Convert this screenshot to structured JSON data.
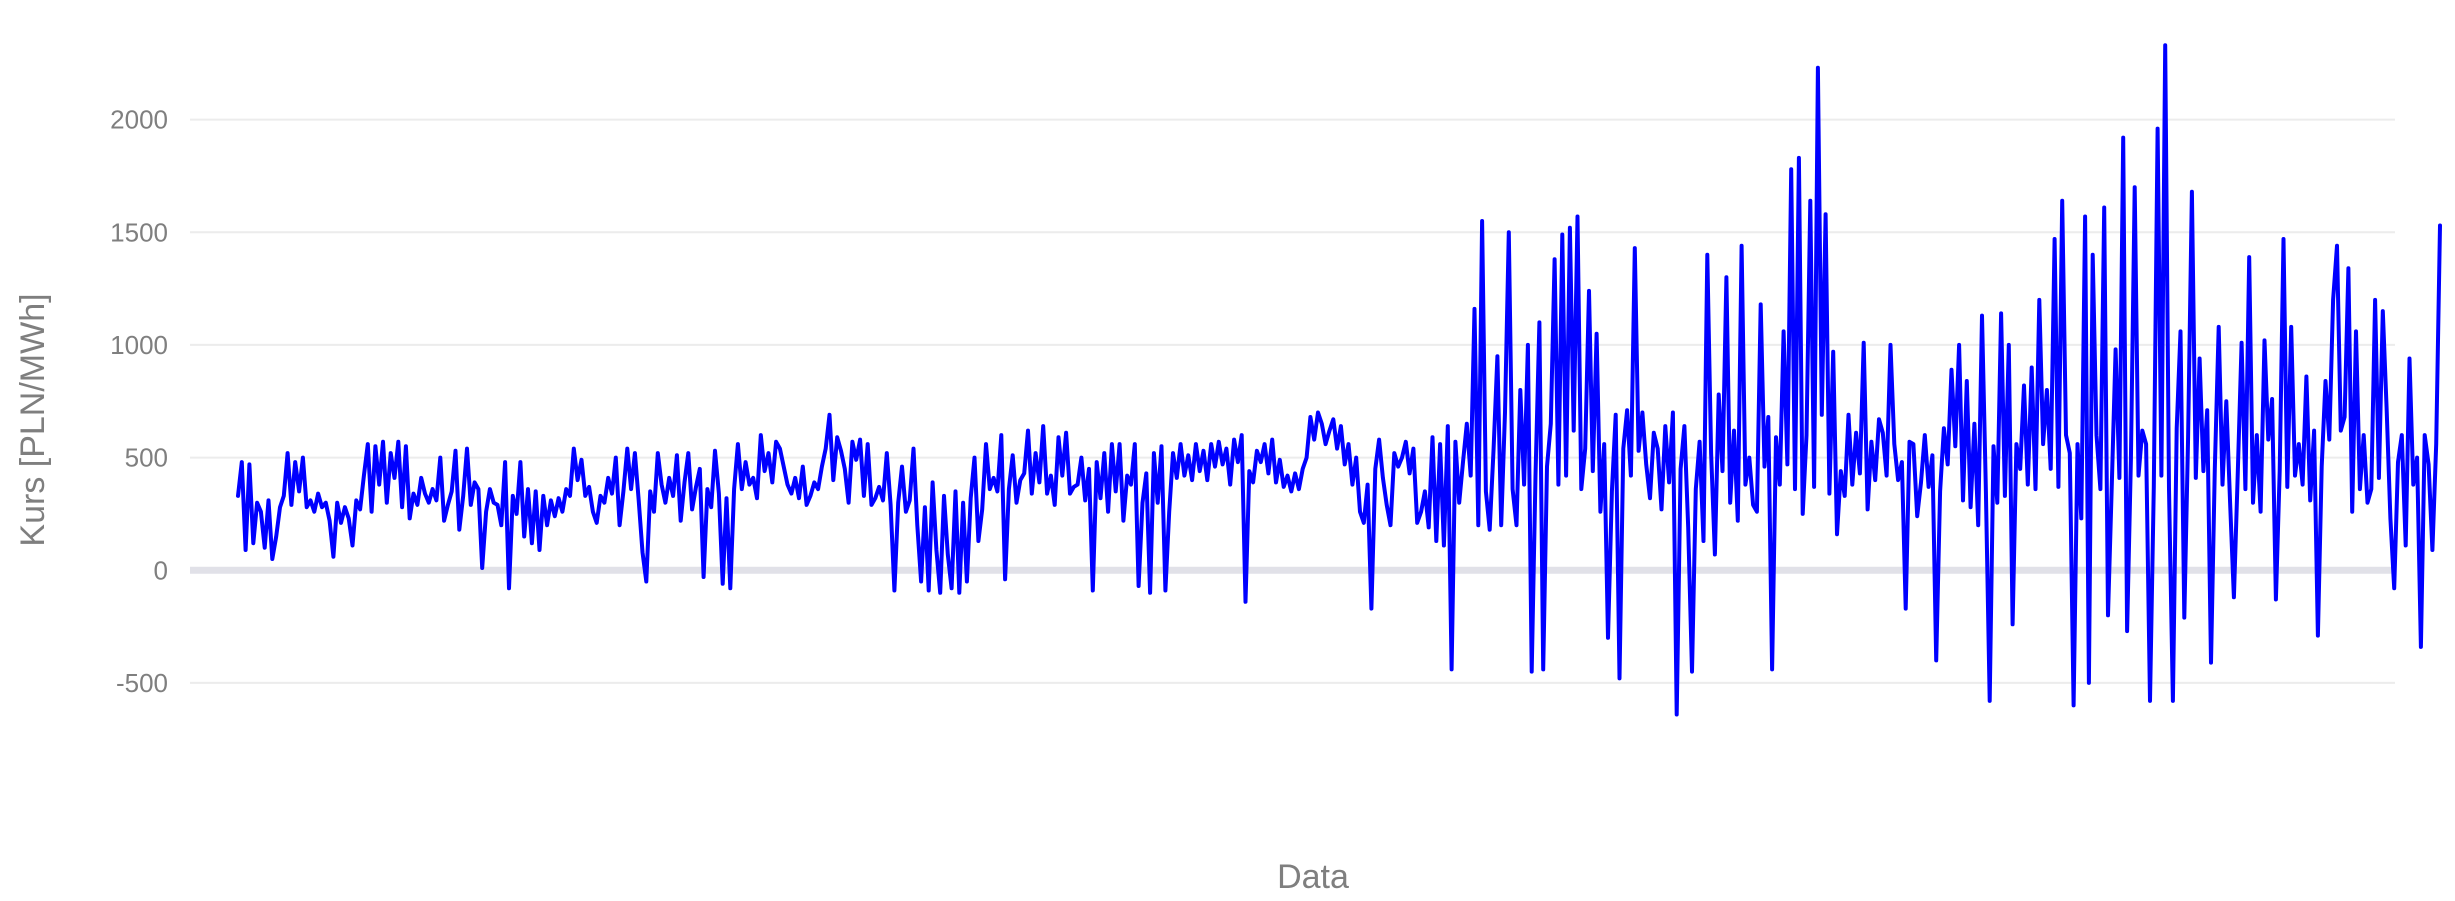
{
  "chart_data": {
    "type": "line",
    "title": "",
    "xlabel": "Data",
    "ylabel": "Kurs [PLN/MWh]",
    "ylim": [
      -780,
      2380
    ],
    "yticks": [
      2000,
      1500,
      1000,
      500,
      0,
      -500
    ],
    "grid": true,
    "legend": "none",
    "series": [
      {
        "color": "#0000ff",
        "values": [
          330,
          480,
          90,
          470,
          120,
          300,
          260,
          100,
          310,
          50,
          150,
          280,
          330,
          520,
          290,
          480,
          350,
          500,
          280,
          310,
          260,
          340,
          280,
          300,
          220,
          60,
          300,
          210,
          280,
          230,
          110,
          310,
          270,
          420,
          560,
          260,
          550,
          380,
          570,
          300,
          520,
          410,
          570,
          280,
          550,
          230,
          340,
          290,
          410,
          340,
          300,
          360,
          310,
          500,
          220,
          290,
          350,
          530,
          180,
          330,
          540,
          290,
          390,
          360,
          10,
          260,
          360,
          300,
          290,
          200,
          480,
          -80,
          330,
          250,
          480,
          150,
          360,
          120,
          350,
          90,
          330,
          200,
          310,
          240,
          320,
          260,
          360,
          330,
          540,
          400,
          490,
          330,
          370,
          260,
          210,
          330,
          300,
          410,
          340,
          500,
          200,
          350,
          540,
          360,
          520,
          310,
          80,
          -50,
          350,
          260,
          520,
          380,
          300,
          410,
          330,
          510,
          220,
          390,
          520,
          270,
          370,
          450,
          -30,
          360,
          280,
          530,
          340,
          -60,
          320,
          -80,
          360,
          560,
          360,
          480,
          380,
          410,
          320,
          600,
          440,
          520,
          390,
          570,
          540,
          460,
          380,
          340,
          410,
          320,
          460,
          290,
          330,
          390,
          360,
          460,
          540,
          690,
          400,
          590,
          530,
          450,
          300,
          570,
          490,
          580,
          330,
          560,
          290,
          320,
          370,
          310,
          520,
          290,
          -90,
          300,
          460,
          260,
          310,
          540,
          200,
          -50,
          280,
          -90,
          390,
          90,
          -100,
          330,
          70,
          -80,
          350,
          -100,
          300,
          -50,
          320,
          500,
          130,
          270,
          560,
          360,
          410,
          350,
          600,
          -40,
          360,
          510,
          300,
          400,
          430,
          620,
          340,
          520,
          390,
          640,
          340,
          420,
          290,
          590,
          420,
          610,
          340,
          370,
          380,
          500,
          310,
          450,
          -90,
          480,
          320,
          520,
          260,
          560,
          350,
          560,
          220,
          420,
          380,
          560,
          -70,
          300,
          430,
          -100,
          520,
          300,
          550,
          -90,
          260,
          520,
          410,
          560,
          420,
          510,
          400,
          560,
          440,
          530,
          400,
          560,
          460,
          570,
          470,
          540,
          380,
          580,
          480,
          600,
          -140,
          440,
          390,
          530,
          480,
          560,
          430,
          580,
          390,
          490,
          370,
          420,
          350,
          430,
          360,
          450,
          500,
          680,
          580,
          700,
          650,
          560,
          620,
          670,
          540,
          640,
          470,
          560,
          380,
          500,
          260,
          210,
          380,
          -170,
          450,
          580,
          410,
          290,
          200,
          520,
          460,
          500,
          570,
          430,
          540,
          210,
          260,
          350,
          190,
          590,
          130,
          560,
          110,
          640,
          -440,
          570,
          300,
          480,
          650,
          420,
          1160,
          200,
          1550,
          350,
          180,
          540,
          950,
          200,
          700,
          1500,
          360,
          200,
          800,
          380,
          1000,
          -450,
          420,
          1100,
          -440,
          460,
          650,
          1380,
          380,
          1490,
          420,
          1520,
          620,
          1570,
          360,
          540,
          1240,
          440,
          1050,
          260,
          560,
          -300,
          350,
          690,
          -480,
          540,
          710,
          420,
          1430,
          530,
          700,
          470,
          320,
          610,
          540,
          270,
          640,
          390,
          700,
          -640,
          450,
          640,
          190,
          -450,
          360,
          570,
          130,
          1400,
          520,
          70,
          780,
          440,
          1300,
          300,
          620,
          220,
          1440,
          380,
          500,
          290,
          260,
          1180,
          460,
          680,
          -440,
          590,
          380,
          1060,
          470,
          1780,
          360,
          1830,
          250,
          600,
          1640,
          370,
          2230,
          690,
          1580,
          340,
          970,
          160,
          440,
          330,
          690,
          380,
          610,
          430,
          1010,
          270,
          570,
          400,
          670,
          610,
          420,
          1000,
          560,
          400,
          480,
          -170,
          570,
          560,
          240,
          390,
          600,
          370,
          510,
          -400,
          350,
          630,
          470,
          890,
          550,
          1000,
          310,
          840,
          280,
          650,
          200,
          1130,
          350,
          -580,
          550,
          300,
          1140,
          330,
          1000,
          -240,
          560,
          450,
          820,
          380,
          900,
          360,
          1200,
          560,
          800,
          450,
          1470,
          370,
          1640,
          600,
          520,
          -600,
          560,
          230,
          1570,
          -500,
          1400,
          600,
          360,
          1610,
          -200,
          380,
          980,
          410,
          1920,
          -270,
          490,
          1700,
          420,
          620,
          560,
          -580,
          370,
          1960,
          420,
          2330,
          360,
          -580,
          630,
          1060,
          -210,
          590,
          1680,
          410,
          940,
          440,
          710,
          -410,
          450,
          1080,
          380,
          750,
          300,
          -120,
          420,
          1010,
          360,
          1390,
          300,
          600,
          260,
          1020,
          580,
          760,
          -130,
          440,
          1470,
          370,
          1080,
          420,
          560,
          380,
          860,
          310,
          620,
          -290,
          460,
          840,
          580,
          1200,
          1440,
          620,
          680,
          1340,
          260,
          1060,
          360,
          600,
          300,
          360,
          1200,
          410,
          1150,
          720,
          230,
          -80,
          480,
          600,
          110,
          940,
          380,
          500,
          -340,
          600,
          470,
          90,
          560,
          1530
        ]
      }
    ]
  }
}
